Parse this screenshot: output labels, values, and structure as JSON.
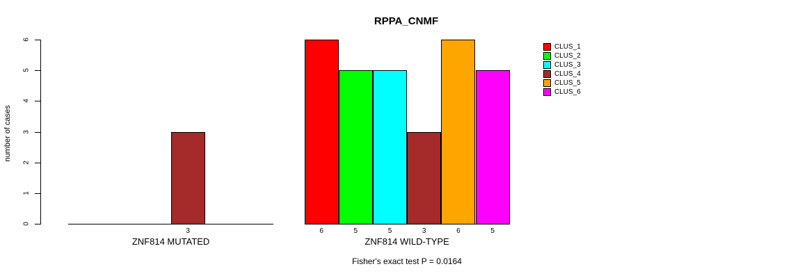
{
  "chart_data": {
    "type": "bar",
    "title": "RPPA_CNMF",
    "ylabel": "number of cases",
    "ylim": [
      0,
      6
    ],
    "yticks": [
      0,
      1,
      2,
      3,
      4,
      5,
      6
    ],
    "grid": false,
    "legend_position": "right",
    "clusters": [
      {
        "name": "CLUS_1",
        "color": "#FF0000"
      },
      {
        "name": "CLUS_2",
        "color": "#00FF00"
      },
      {
        "name": "CLUS_3",
        "color": "#00FFFF"
      },
      {
        "name": "CLUS_4",
        "color": "#A52A2A"
      },
      {
        "name": "CLUS_5",
        "color": "#FFA500"
      },
      {
        "name": "CLUS_6",
        "color": "#FF00FF"
      }
    ],
    "groups": [
      {
        "label": "ZNF814 MUTATED",
        "values": [
          0,
          0,
          0,
          3,
          0,
          0
        ]
      },
      {
        "label": "ZNF814 WILD-TYPE",
        "values": [
          6,
          5,
          5,
          3,
          6,
          5
        ]
      }
    ],
    "annotation": "Fisher's exact test P = 0.0164"
  }
}
